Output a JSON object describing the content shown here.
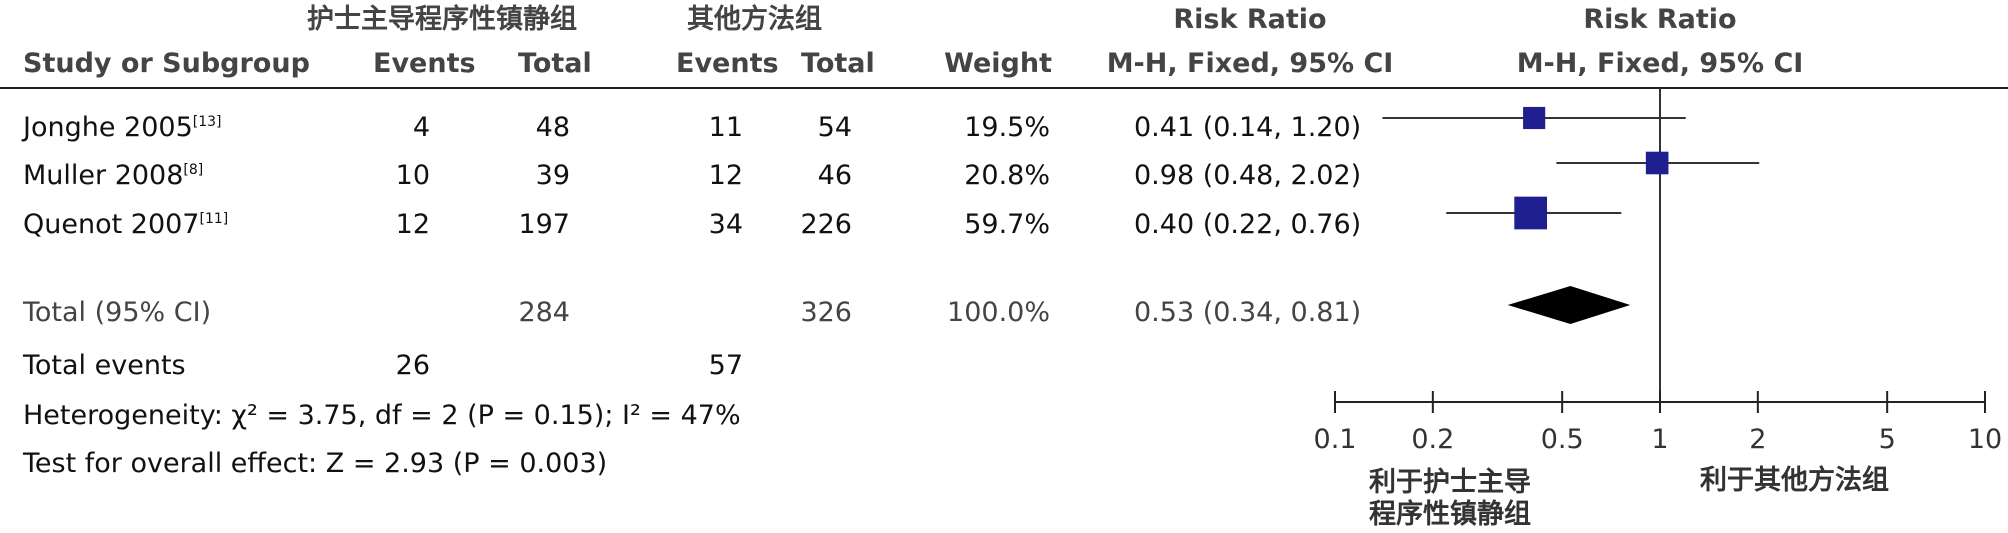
{
  "header": {
    "group1_name": "护士主导程序性镇静组",
    "group2_name": "其他方法组",
    "rr_title_left": "Risk Ratio",
    "rr_title_right": "Risk Ratio",
    "study_col": "Study or Subgroup",
    "events1": "Events",
    "total1": "Total",
    "events2": "Events",
    "total2": "Total",
    "weight": "Weight",
    "method_left": "M-H, Fixed, 95% CI",
    "method_right": "M-H, Fixed, 95% CI"
  },
  "studies": [
    {
      "name": "Jonghe 2005",
      "ref": "[13]",
      "events1": "4",
      "total1": "48",
      "events2": "11",
      "total2": "54",
      "weight": "19.5%",
      "ci_text": "0.41 (0.14, 1.20)"
    },
    {
      "name": "Muller 2008",
      "ref": "[8]",
      "events1": "10",
      "total1": "39",
      "events2": "12",
      "total2": "46",
      "weight": "20.8%",
      "ci_text": "0.98 (0.48, 2.02)"
    },
    {
      "name": "Quenot 2007",
      "ref": "[11]",
      "events1": "12",
      "total1": "197",
      "events2": "34",
      "total2": "226",
      "weight": "59.7%",
      "ci_text": "0.40 (0.22, 0.76)"
    }
  ],
  "total": {
    "label": "Total (95% CI)",
    "total1": "284",
    "total2": "326",
    "weight": "100.0%",
    "ci_text": "0.53 (0.34, 0.81)"
  },
  "total_events": {
    "label": "Total events",
    "events1": "26",
    "events2": "57"
  },
  "heterogeneity": "Heterogeneity: χ² = 3.75, df = 2 (P = 0.15); I² = 47%",
  "overall_effect": "Test for overall effect: Z = 2.93 (P = 0.003)",
  "axis": {
    "favours_left_line1": "利于护士主导",
    "favours_left_line2": "程序性镇静组",
    "favours_right": "利于其他方法组"
  },
  "chart_data": {
    "type": "forest",
    "scale": "log",
    "xlim": [
      0.1,
      10
    ],
    "null_value": 1,
    "ticks": [
      0.1,
      0.2,
      0.5,
      1,
      2,
      5,
      10
    ],
    "tick_labels": [
      "0.1",
      "0.2",
      "0.5",
      "1",
      "2",
      "5",
      "10"
    ],
    "marker_color": "#1f1f8f",
    "studies": [
      {
        "rr": 0.41,
        "lower": 0.14,
        "upper": 1.2,
        "weight": 19.5
      },
      {
        "rr": 0.98,
        "lower": 0.48,
        "upper": 2.02,
        "weight": 20.8
      },
      {
        "rr": 0.4,
        "lower": 0.22,
        "upper": 0.76,
        "weight": 59.7
      }
    ],
    "pooled": {
      "rr": 0.53,
      "lower": 0.34,
      "upper": 0.81
    }
  }
}
